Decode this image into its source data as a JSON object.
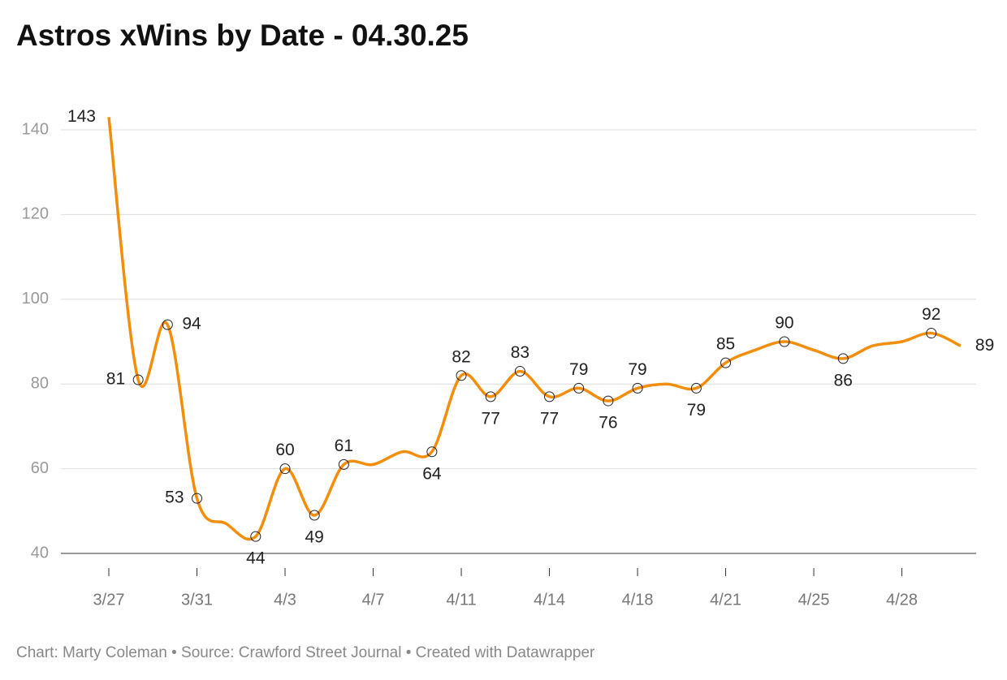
{
  "chart_data": {
    "type": "line",
    "title": "Astros xWins by Date - 04.30.25",
    "footer": "Chart: Marty Coleman • Source: Crawford Street Journal • Created with Datawrapper",
    "categories": [
      "3/27",
      null,
      null,
      "3/31",
      null,
      null,
      "4/3",
      null,
      null,
      "4/7",
      null,
      null,
      "4/11",
      null,
      null,
      "4/14",
      null,
      null,
      "4/18",
      null,
      null,
      "4/21",
      null,
      null,
      "4/25",
      null,
      null,
      "4/28",
      null,
      null
    ],
    "series": [
      {
        "name": "xWins",
        "color": "#f28e0c",
        "values": [
          143,
          81,
          94,
          53,
          47,
          44,
          60,
          49,
          61,
          61,
          64,
          64,
          82,
          77,
          83,
          77,
          79,
          76,
          79,
          80,
          79,
          85,
          88,
          90,
          88,
          86,
          89,
          90,
          92,
          89
        ],
        "value_labels": [
          "143",
          "81",
          "94",
          "53",
          null,
          "44",
          "60",
          "49",
          "61",
          null,
          null,
          "64",
          "82",
          "77",
          "83",
          "77",
          "79",
          "76",
          "79",
          null,
          "79",
          "85",
          null,
          "90",
          null,
          "86",
          null,
          null,
          "92",
          "89"
        ]
      }
    ],
    "ylim": [
      40,
      140
    ],
    "yticks": [
      40,
      60,
      80,
      100,
      120,
      140
    ],
    "grid": true
  }
}
